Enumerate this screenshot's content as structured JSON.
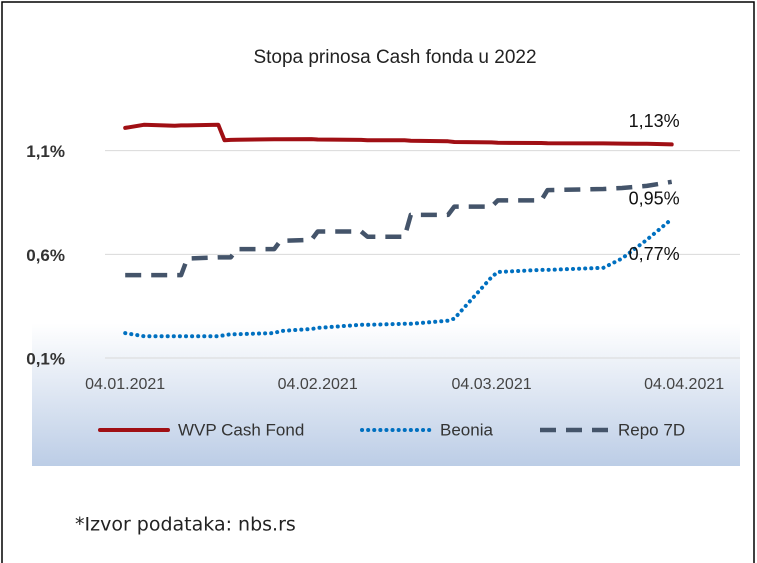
{
  "chart_data": {
    "type": "line",
    "title": "Stopa prinosa Cash fonda u 2022",
    "x": [
      "2021-01-04",
      "2021-01-07",
      "2021-01-12",
      "2021-01-13",
      "2021-01-14",
      "2021-01-19",
      "2021-01-20",
      "2021-01-21",
      "2021-01-22",
      "2021-01-28",
      "2021-01-29",
      "2021-02-03",
      "2021-02-04",
      "2021-02-11",
      "2021-02-12",
      "2021-02-18",
      "2021-02-19",
      "2021-02-25",
      "2021-02-26",
      "2021-03-04",
      "2021-03-05",
      "2021-03-12",
      "2021-03-13",
      "2021-03-22",
      "2021-03-25",
      "2021-03-29",
      "2021-04-02"
    ],
    "series": [
      {
        "name": "WVP Cash Fond",
        "color": "#a00f14",
        "dash": "solid",
        "values": [
          1.21,
          1.225,
          1.22,
          1.222,
          1.222,
          1.225,
          1.15,
          1.152,
          1.153,
          1.155,
          1.155,
          1.156,
          1.154,
          1.152,
          1.15,
          1.15,
          1.148,
          1.145,
          1.142,
          1.14,
          1.138,
          1.137,
          1.136,
          1.135,
          1.134,
          1.133,
          1.13
        ],
        "value_labels": [
          null,
          null,
          null,
          null,
          null,
          null,
          null,
          null,
          null,
          null,
          null,
          null,
          null,
          null,
          null,
          null,
          null,
          null,
          null,
          null,
          null,
          null,
          null,
          null,
          null,
          null,
          "1,13%"
        ]
      },
      {
        "name": "Beonia",
        "color": "#0070c0",
        "dash": "dotted",
        "values": [
          0.22,
          0.205,
          0.205,
          0.205,
          0.205,
          0.205,
          0.21,
          0.215,
          0.215,
          0.22,
          0.23,
          0.24,
          0.245,
          0.26,
          0.26,
          0.265,
          0.265,
          0.28,
          0.29,
          0.49,
          0.515,
          0.525,
          0.525,
          0.535,
          0.58,
          0.67,
          0.77
        ],
        "value_labels": [
          null,
          null,
          null,
          null,
          null,
          null,
          null,
          null,
          null,
          null,
          null,
          null,
          null,
          null,
          null,
          null,
          null,
          null,
          null,
          null,
          null,
          null,
          null,
          null,
          null,
          null,
          "0,77%"
        ]
      },
      {
        "name": "Repo 7D",
        "color": "#44546a",
        "dash": "dashed",
        "values": [
          0.5,
          0.5,
          0.5,
          0.5,
          0.58,
          0.585,
          0.585,
          0.585,
          0.625,
          0.625,
          0.665,
          0.67,
          0.71,
          0.71,
          0.685,
          0.685,
          0.79,
          0.79,
          0.83,
          0.83,
          0.86,
          0.86,
          0.91,
          0.915,
          0.92,
          0.93,
          0.95
        ],
        "value_labels": [
          null,
          null,
          null,
          null,
          null,
          null,
          null,
          null,
          null,
          null,
          null,
          null,
          null,
          null,
          null,
          null,
          null,
          null,
          null,
          null,
          null,
          null,
          null,
          null,
          null,
          null,
          "0,95%"
        ]
      }
    ],
    "xlim": [
      "2020-12-20",
      "2021-04-13"
    ],
    "xticks": [
      {
        "value": "2021-01-04",
        "label": "04.01.2021"
      },
      {
        "value": "2021-02-04",
        "label": "04.02.2021"
      },
      {
        "value": "2021-03-04",
        "label": "04.03.2021"
      },
      {
        "value": "2021-04-04",
        "label": "04.04.2021"
      }
    ],
    "ylim": [
      0.1,
      1.6
    ],
    "yticks": [
      {
        "value": 0.1,
        "label": "0,1%"
      },
      {
        "value": 0.6,
        "label": "0,6%"
      },
      {
        "value": 1.1,
        "label": "1,1%"
      }
    ],
    "grid": true,
    "legend": "bottom"
  },
  "footer": "*Izvor podataka: nbs.rs"
}
